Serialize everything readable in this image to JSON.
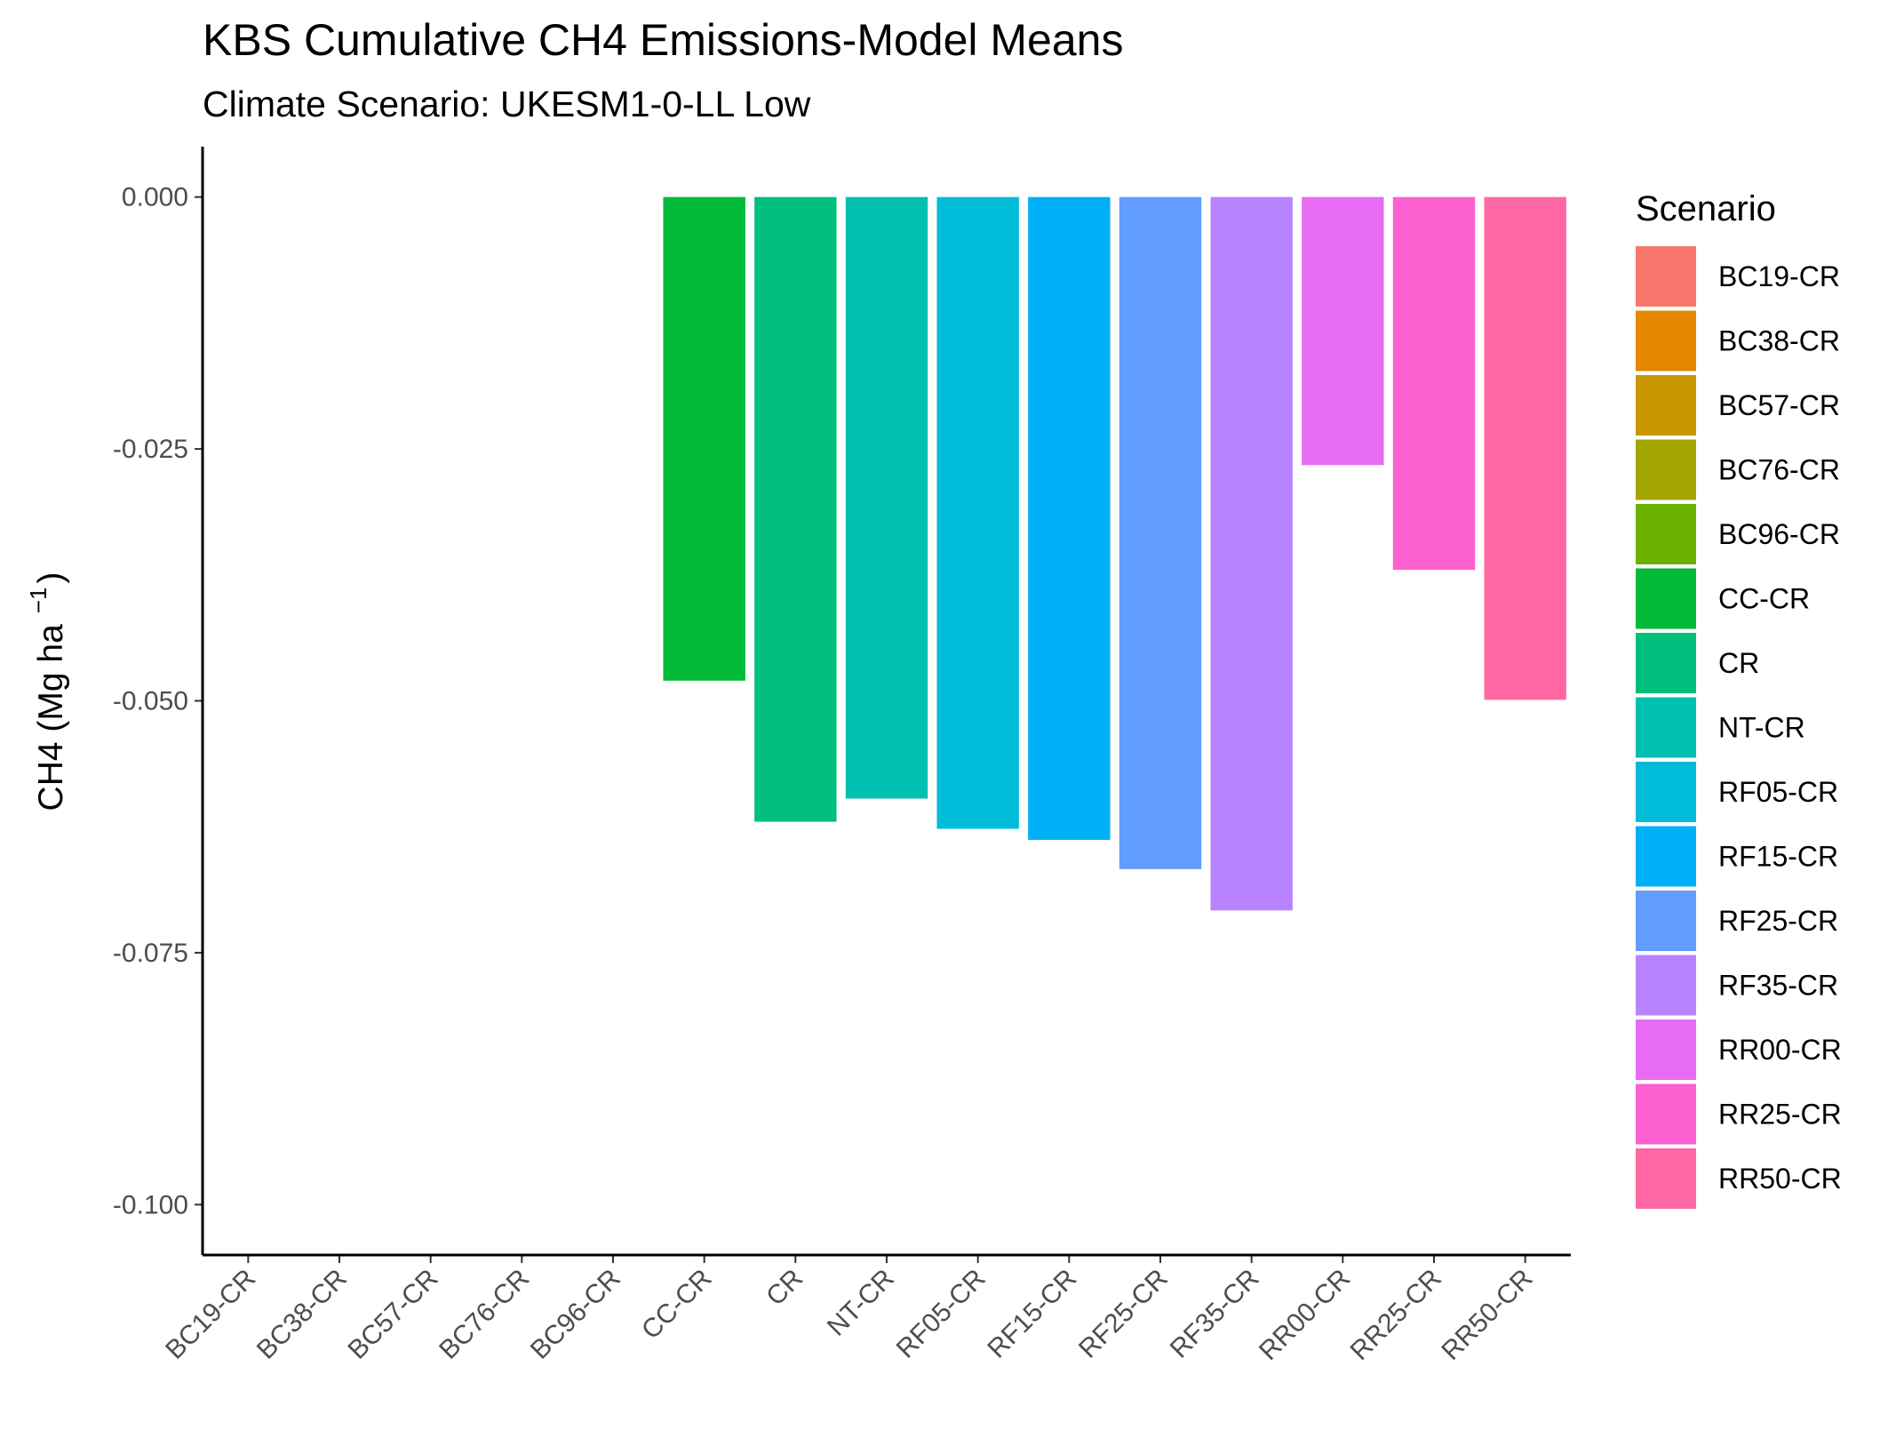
{
  "chart_data": {
    "type": "bar",
    "title": "KBS Cumulative CH4 Emissions-Model Means",
    "subtitle": "Climate Scenario: UKESM1-0-LL Low",
    "xlabel": "",
    "ylabel": {
      "main": "CH4 (Mg ha",
      "superscript": "−1",
      "close": ")"
    },
    "ylim": [
      -0.105,
      0.005
    ],
    "yticks": [
      0.0,
      -0.025,
      -0.05,
      -0.075,
      -0.1
    ],
    "ytick_labels": [
      "0.000",
      "-0.025",
      "-0.050",
      "-0.075",
      "-0.100"
    ],
    "categories": [
      "BC19-CR",
      "BC38-CR",
      "BC57-CR",
      "BC76-CR",
      "BC96-CR",
      "CC-CR",
      "CR",
      "NT-CR",
      "RF05-CR",
      "RF15-CR",
      "RF25-CR",
      "RF35-CR",
      "RR00-CR",
      "RR25-CR",
      "RR50-CR"
    ],
    "values": [
      null,
      null,
      null,
      null,
      null,
      -0.048,
      -0.062,
      -0.0597,
      -0.0627,
      -0.0638,
      -0.0667,
      -0.0708,
      -0.0266,
      -0.037,
      -0.0499
    ],
    "colors": [
      "#F8766D",
      "#E58700",
      "#C99800",
      "#A3A500",
      "#6BB100",
      "#00BA38",
      "#00BF7D",
      "#00C0AF",
      "#00BCD8",
      "#00B0F6",
      "#619CFF",
      "#B983FF",
      "#E76BF3",
      "#FD61D1",
      "#FF67A4"
    ],
    "grid": false,
    "legend": {
      "title": "Scenario",
      "position": "right",
      "entries": [
        "BC19-CR",
        "BC38-CR",
        "BC57-CR",
        "BC76-CR",
        "BC96-CR",
        "CC-CR",
        "CR",
        "NT-CR",
        "RF05-CR",
        "RF15-CR",
        "RF25-CR",
        "RF35-CR",
        "RR00-CR",
        "RR25-CR",
        "RR50-CR"
      ]
    }
  }
}
